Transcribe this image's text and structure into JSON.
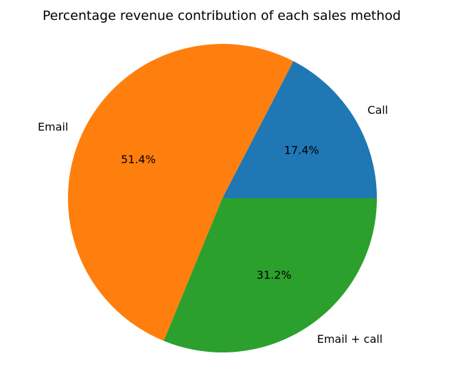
{
  "chart_data": {
    "type": "pie",
    "title": "Percentage revenue contribution of each sales method",
    "slices": [
      {
        "label": "Call",
        "value": 17.4,
        "pct_label": "17.4%",
        "color": "#1f77b4"
      },
      {
        "label": "Email",
        "value": 51.4,
        "pct_label": "51.4%",
        "color": "#ff7f0e"
      },
      {
        "label": "Email + call",
        "value": 31.2,
        "pct_label": "31.2%",
        "color": "#2ca02c"
      }
    ],
    "start_angle_deg": 0,
    "direction": "counterclockwise"
  }
}
